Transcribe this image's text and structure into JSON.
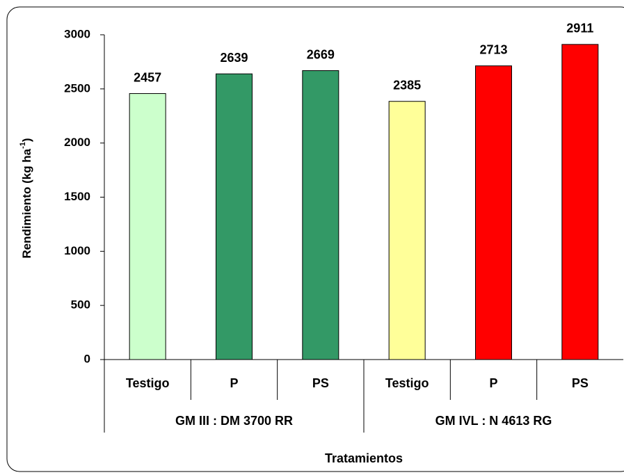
{
  "chart_data": {
    "type": "bar",
    "ylabel": "Rendimiento (kg ha",
    "ylabel_sup": "-1",
    "ylabel_end": ")",
    "xlabel": "Tratamientos",
    "groups": [
      {
        "name": "GM III : DM 3700 RR",
        "categories": [
          "Testigo",
          "P",
          "PS"
        ],
        "values": [
          2457,
          2639,
          2669
        ],
        "colors": [
          "#ccffcc",
          "#339966",
          "#339966"
        ]
      },
      {
        "name": "GM IVL : N 4613 RG",
        "categories": [
          "Testigo",
          "P",
          "PS"
        ],
        "values": [
          2385,
          2713,
          2911
        ],
        "colors": [
          "#ffff99",
          "#ff0000",
          "#ff0000"
        ]
      }
    ],
    "ylim": [
      0,
      3000
    ],
    "yticks": [
      0,
      500,
      1000,
      1500,
      2000,
      2500,
      3000
    ],
    "grid": false
  }
}
